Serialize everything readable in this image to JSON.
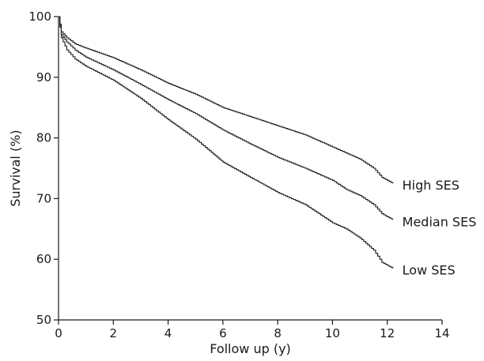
{
  "chart_data": {
    "type": "line",
    "title": "",
    "xlabel": "Follow up (y)",
    "ylabel": "Survival (%)",
    "xlim": [
      0,
      14
    ],
    "ylim": [
      50,
      100
    ],
    "x_ticks": [
      0,
      2,
      4,
      6,
      8,
      10,
      12,
      14
    ],
    "y_ticks": [
      50,
      60,
      70,
      80,
      90,
      100
    ],
    "grid": false,
    "legend": "inline labels at line ends",
    "step": true,
    "series": [
      {
        "name": "High SES",
        "x": [
          0,
          0.1,
          0.3,
          0.6,
          1,
          2,
          3,
          4,
          5,
          6,
          7,
          8,
          9,
          10,
          10.5,
          11,
          11.5,
          11.8,
          12.2
        ],
        "values": [
          100,
          97.5,
          96.5,
          95.5,
          94.8,
          93.2,
          91.2,
          89,
          87.2,
          85,
          83.5,
          82,
          80.5,
          78.5,
          77.5,
          76.5,
          75,
          73.5,
          72.5
        ]
      },
      {
        "name": "Median SES",
        "x": [
          0,
          0.1,
          0.3,
          0.6,
          1,
          2,
          3,
          4,
          5,
          6,
          7,
          8,
          9,
          10,
          10.5,
          11,
          11.5,
          11.8,
          12.2
        ],
        "values": [
          100,
          97,
          95.8,
          94.5,
          93.3,
          91.2,
          88.8,
          86.3,
          84,
          81.3,
          79,
          76.8,
          75,
          73,
          71.5,
          70.5,
          69,
          67.5,
          66.5
        ]
      },
      {
        "name": "Low SES",
        "x": [
          0,
          0.1,
          0.3,
          0.6,
          1,
          2,
          3,
          4,
          5,
          6,
          7,
          8,
          9,
          10,
          10.5,
          11,
          11.5,
          11.8,
          12.2
        ],
        "values": [
          100,
          96.5,
          94.5,
          93,
          91.8,
          89.5,
          86.5,
          83,
          79.8,
          76,
          73.5,
          71,
          69,
          66,
          65,
          63.5,
          61.5,
          59.5,
          58.5
        ]
      }
    ]
  }
}
